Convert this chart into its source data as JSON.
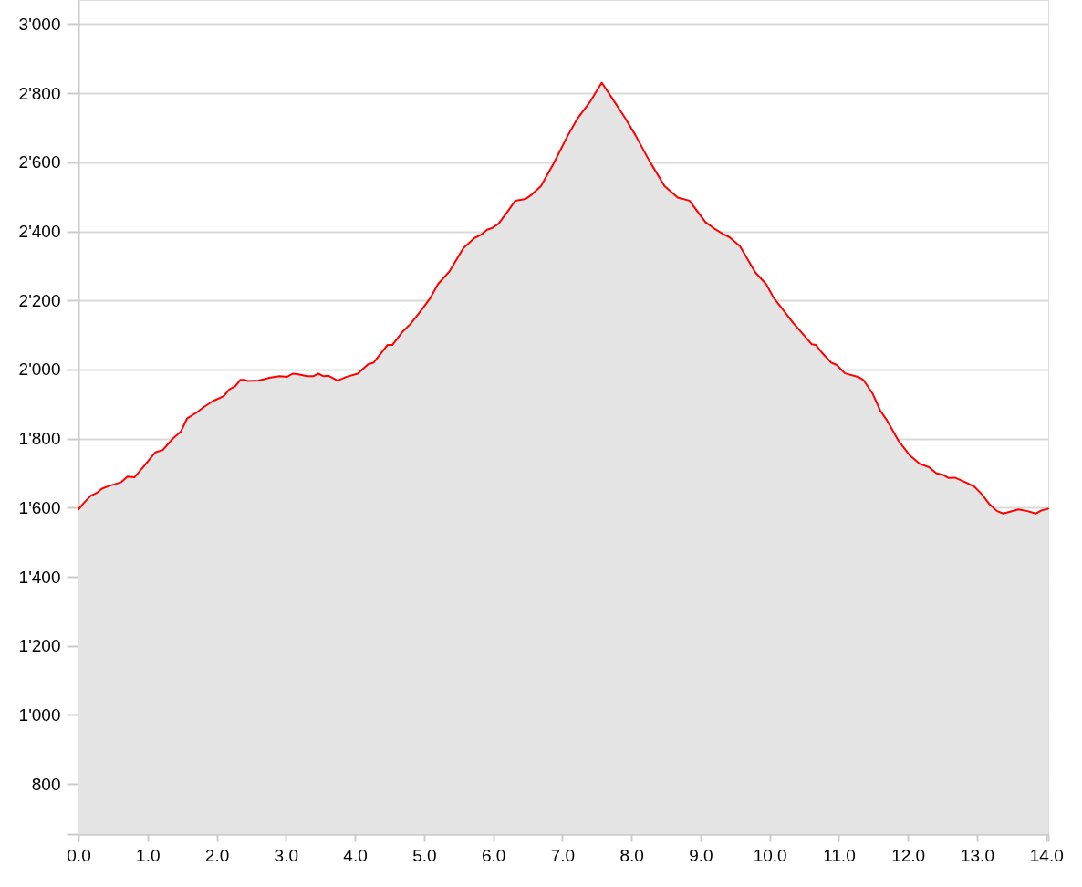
{
  "chart_data": {
    "type": "area",
    "x": [
      0,
      0.075,
      0.18,
      0.26,
      0.34,
      0.43,
      0.62,
      0.71,
      0.81,
      0.93,
      1.11,
      1.22,
      1.37,
      1.48,
      1.57,
      1.72,
      1.81,
      1.94,
      2.1,
      2.18,
      2.27,
      2.34,
      2.4,
      2.45,
      2.6,
      2.69,
      2.76,
      2.91,
      3.02,
      3.1,
      3.18,
      3.31,
      3.4,
      3.47,
      3.54,
      3.62,
      3.75,
      3.88,
      4.04,
      4.19,
      4.27,
      4.47,
      4.54,
      4.69,
      4.8,
      4.96,
      5.09,
      5.2,
      5.37,
      5.57,
      5.73,
      5.84,
      5.91,
      5.99,
      6.08,
      6.21,
      6.32,
      6.47,
      6.56,
      6.69,
      6.87,
      7.07,
      7.22,
      7.4,
      7.57,
      7.71,
      7.9,
      8.06,
      8.26,
      8.48,
      8.67,
      8.84,
      9.07,
      9.2,
      9.33,
      9.42,
      9.57,
      9.79,
      9.95,
      10.06,
      10.19,
      10.34,
      10.45,
      10.61,
      10.67,
      10.76,
      10.89,
      10.97,
      11.09,
      11.29,
      11.36,
      11.49,
      11.6,
      11.69,
      11.86,
      12.02,
      12.17,
      12.3,
      12.41,
      12.52,
      12.59,
      12.68,
      12.83,
      12.96,
      13.07,
      13.18,
      13.29,
      13.38,
      13.6,
      13.73,
      13.85,
      13.93,
      14.03
    ],
    "xlim": [
      0,
      14.03
    ],
    "ylim": [
      655,
      3070
    ],
    "xticks": [
      {
        "value": 0,
        "label": "0.0"
      },
      {
        "value": 1,
        "label": "1.0"
      },
      {
        "value": 2,
        "label": "2.0"
      },
      {
        "value": 3,
        "label": "3.0"
      },
      {
        "value": 4,
        "label": "4.0"
      },
      {
        "value": 5,
        "label": "5.0"
      },
      {
        "value": 6,
        "label": "6.0"
      },
      {
        "value": 7,
        "label": "7.0"
      },
      {
        "value": 8,
        "label": "8.0"
      },
      {
        "value": 9,
        "label": "9.0"
      },
      {
        "value": 10,
        "label": "10.0"
      },
      {
        "value": 11,
        "label": "11.0"
      },
      {
        "value": 12,
        "label": "12.0"
      },
      {
        "value": 13,
        "label": "13.0"
      },
      {
        "value": 14,
        "label": "14.0"
      },
      {
        "value": 14.03,
        "label": null
      }
    ],
    "yticks": [
      {
        "value": 655,
        "label": null
      },
      800,
      {
        "value": 1000,
        "label": "1'000"
      },
      {
        "value": 1200,
        "label": "1'200"
      },
      {
        "value": 1400,
        "label": "1'400"
      },
      {
        "value": 1600,
        "label": "1'600"
      },
      {
        "value": 1800,
        "label": "1'800"
      },
      {
        "value": 2000,
        "label": "2'000"
      },
      {
        "value": 2200,
        "label": "2'200"
      },
      {
        "value": 2400,
        "label": "2'400"
      },
      {
        "value": 2600,
        "label": "2'600"
      },
      {
        "value": 2800,
        "label": "2'800"
      },
      {
        "value": 3000,
        "label": "3'000"
      }
    ],
    "grid": "y",
    "series": [
      {
        "color": "#ff0000",
        "values": [
          1595,
          1613,
          1635,
          1642,
          1655,
          1662,
          1674,
          1690,
          1688,
          1716,
          1760,
          1767,
          1801,
          1820,
          1858,
          1877,
          1891,
          1908,
          1923,
          1942,
          1952,
          1970,
          1970,
          1967,
          1968,
          1972,
          1976,
          1981,
          1979,
          1988,
          1986,
          1981,
          1981,
          1988,
          1981,
          1982,
          1968,
          1979,
          1988,
          2015,
          2020,
          2071,
          2071,
          2110,
          2131,
          2172,
          2207,
          2247,
          2285,
          2352,
          2381,
          2392,
          2405,
          2410,
          2423,
          2458,
          2489,
          2494,
          2507,
          2531,
          2595,
          2674,
          2727,
          2775,
          2831,
          2789,
          2731,
          2678,
          2604,
          2531,
          2498,
          2489,
          2427,
          2408,
          2392,
          2383,
          2357,
          2282,
          2247,
          2207,
          2174,
          2135,
          2110,
          2073,
          2071,
          2048,
          2020,
          2013,
          1989,
          1978,
          1969,
          1930,
          1881,
          1855,
          1795,
          1753,
          1727,
          1718,
          1700,
          1694,
          1686,
          1687,
          1674,
          1661,
          1639,
          1610,
          1590,
          1583,
          1595,
          1590,
          1583,
          1592,
          1597
        ]
      }
    ]
  }
}
